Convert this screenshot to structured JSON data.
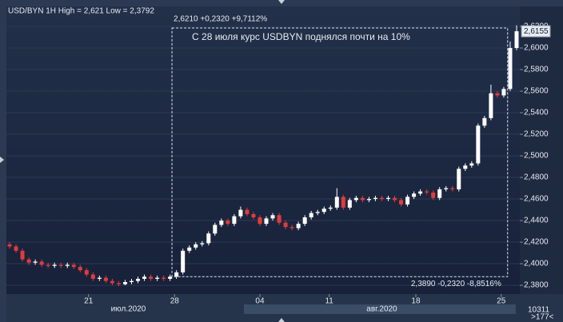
{
  "chart_data": {
    "type": "candlestick",
    "title": "USD/BYN 1H High = 2,621 Low = 2,3792",
    "x": [
      0,
      1,
      2,
      3,
      4,
      5,
      6,
      7,
      8,
      9,
      10,
      11,
      12,
      13,
      14,
      15,
      16,
      17,
      18,
      19,
      20,
      21,
      22,
      23,
      24,
      25,
      26,
      27,
      28,
      29,
      30,
      31,
      32,
      33,
      34,
      35,
      36,
      37,
      38,
      39,
      40,
      41,
      42,
      43,
      44,
      45,
      46,
      47,
      48,
      49,
      50,
      51,
      52,
      53,
      54,
      55,
      56,
      57,
      58,
      59,
      60,
      61,
      62,
      63,
      64,
      65,
      66,
      67,
      68,
      69,
      70,
      71,
      72,
      73,
      74,
      75,
      76,
      77,
      78,
      79
    ],
    "open": [
      2.418,
      2.416,
      2.412,
      2.404,
      2.401,
      2.402,
      2.399,
      2.398,
      2.399,
      2.398,
      2.399,
      2.397,
      2.394,
      2.39,
      2.386,
      2.387,
      2.384,
      2.382,
      2.381,
      2.383,
      2.384,
      2.386,
      2.388,
      2.386,
      2.387,
      2.386,
      2.388,
      2.392,
      2.412,
      2.415,
      2.418,
      2.419,
      2.428,
      2.436,
      2.44,
      2.437,
      2.444,
      2.45,
      2.446,
      2.443,
      2.437,
      2.442,
      2.445,
      2.438,
      2.434,
      2.433,
      2.437,
      2.443,
      2.447,
      2.448,
      2.451,
      2.452,
      2.462,
      2.452,
      2.459,
      2.461,
      2.459,
      2.46,
      2.461,
      2.46,
      2.461,
      2.459,
      2.455,
      2.462,
      2.465,
      2.467,
      2.466,
      2.461,
      2.469,
      2.47,
      2.469,
      2.488,
      2.491,
      2.493,
      2.528,
      2.535,
      2.558,
      2.556,
      2.562,
      2.6
    ],
    "close": [
      2.416,
      2.412,
      2.404,
      2.401,
      2.402,
      2.399,
      2.398,
      2.399,
      2.398,
      2.399,
      2.397,
      2.394,
      2.39,
      2.386,
      2.387,
      2.384,
      2.382,
      2.381,
      2.383,
      2.384,
      2.386,
      2.388,
      2.386,
      2.387,
      2.386,
      2.388,
      2.392,
      2.412,
      2.415,
      2.418,
      2.419,
      2.428,
      2.436,
      2.44,
      2.437,
      2.444,
      2.45,
      2.446,
      2.443,
      2.437,
      2.442,
      2.445,
      2.438,
      2.434,
      2.433,
      2.437,
      2.443,
      2.447,
      2.448,
      2.451,
      2.452,
      2.462,
      2.452,
      2.459,
      2.461,
      2.459,
      2.46,
      2.461,
      2.46,
      2.461,
      2.459,
      2.455,
      2.462,
      2.465,
      2.467,
      2.466,
      2.461,
      2.469,
      2.47,
      2.469,
      2.488,
      2.491,
      2.493,
      2.528,
      2.535,
      2.558,
      2.556,
      2.562,
      2.6,
      2.6155
    ],
    "high": [
      2.42,
      2.418,
      2.414,
      2.406,
      2.404,
      2.404,
      2.401,
      2.401,
      2.401,
      2.401,
      2.401,
      2.399,
      2.396,
      2.392,
      2.389,
      2.389,
      2.386,
      2.384,
      2.385,
      2.386,
      2.388,
      2.39,
      2.39,
      2.389,
      2.389,
      2.39,
      2.394,
      2.414,
      2.417,
      2.42,
      2.421,
      2.43,
      2.438,
      2.442,
      2.442,
      2.446,
      2.453,
      2.452,
      2.448,
      2.445,
      2.444,
      2.447,
      2.447,
      2.44,
      2.436,
      2.439,
      2.445,
      2.449,
      2.45,
      2.453,
      2.454,
      2.47,
      2.464,
      2.461,
      2.463,
      2.463,
      2.462,
      2.463,
      2.463,
      2.463,
      2.463,
      2.461,
      2.464,
      2.467,
      2.469,
      2.469,
      2.468,
      2.471,
      2.472,
      2.472,
      2.49,
      2.493,
      2.495,
      2.53,
      2.537,
      2.566,
      2.56,
      2.564,
      2.606,
      2.621
    ],
    "low": [
      2.414,
      2.41,
      2.402,
      2.399,
      2.399,
      2.397,
      2.396,
      2.396,
      2.396,
      2.396,
      2.395,
      2.392,
      2.388,
      2.384,
      2.384,
      2.382,
      2.38,
      2.3792,
      2.38,
      2.381,
      2.382,
      2.384,
      2.384,
      2.384,
      2.384,
      2.384,
      2.386,
      2.39,
      2.41,
      2.413,
      2.416,
      2.417,
      2.426,
      2.434,
      2.435,
      2.435,
      2.442,
      2.444,
      2.441,
      2.435,
      2.435,
      2.44,
      2.436,
      2.432,
      2.431,
      2.431,
      2.435,
      2.441,
      2.445,
      2.446,
      2.449,
      2.45,
      2.45,
      2.45,
      2.457,
      2.457,
      2.457,
      2.458,
      2.458,
      2.458,
      2.457,
      2.453,
      2.453,
      2.46,
      2.463,
      2.464,
      2.459,
      2.459,
      2.467,
      2.467,
      2.467,
      2.486,
      2.489,
      2.491,
      2.526,
      2.533,
      2.554,
      2.554,
      2.56,
      2.598
    ],
    "up_color": "#ffffff",
    "down_color": "#e23b3b",
    "xlim": [
      0,
      80
    ],
    "xticks": [
      {
        "value": 12.8,
        "label": "21"
      },
      {
        "value": 26.2,
        "label": "28"
      },
      {
        "value": 39.5,
        "label": "04"
      },
      {
        "value": 50.3,
        "label": "11"
      },
      {
        "value": 63.8,
        "label": "18"
      },
      {
        "value": 77.1,
        "label": "25"
      }
    ],
    "months": [
      {
        "value": 19,
        "label": "июл.2020"
      },
      {
        "value": 58.5,
        "label": "авг.2020"
      }
    ],
    "ylim": [
      2.3719,
      2.6341
    ],
    "yticks": [
      {
        "value": 2.38,
        "label": "2,3800"
      },
      {
        "value": 2.4,
        "label": "2,4000"
      },
      {
        "value": 2.42,
        "label": "2,4200"
      },
      {
        "value": 2.44,
        "label": "2,4400"
      },
      {
        "value": 2.46,
        "label": "2,4600"
      },
      {
        "value": 2.48,
        "label": "2,4800"
      },
      {
        "value": 2.5,
        "label": "2,5000"
      },
      {
        "value": 2.52,
        "label": "2,5200"
      },
      {
        "value": 2.54,
        "label": "2,5400"
      },
      {
        "value": 2.56,
        "label": "2,5600"
      },
      {
        "value": 2.58,
        "label": "2,5800"
      },
      {
        "value": 2.6,
        "label": "2,6000"
      },
      {
        "value": 2.62,
        "label": "2,6200"
      }
    ],
    "current_price": {
      "value": 2.6155,
      "label": "2,6155"
    },
    "measure": {
      "x_start": 25.8,
      "x_end": 78.1,
      "low": 2.388,
      "high": 2.6185,
      "top_label": "2,6210 +0,2320 +9,7112%",
      "bottom_label": "2,3890 -0,2320 -8,8516%",
      "note": "С 28 июля курс USDBYN поднялся почти на 10%"
    },
    "footer": {
      "count": "10311",
      "nav": ">177<"
    }
  }
}
